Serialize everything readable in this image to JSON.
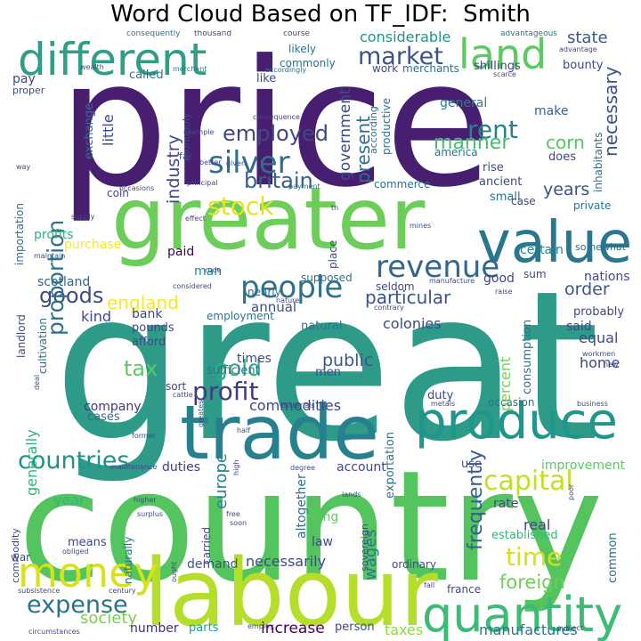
{
  "title": "Word Cloud Based on TF_IDF:  Smith",
  "words": {
    "price": {
      "text": "price",
      "color": "#481f70"
    },
    "great": {
      "text": "great",
      "color": "#2d9b87"
    },
    "country": {
      "text": "country",
      "color": "#54c45f"
    },
    "greater": {
      "text": "greater",
      "color": "#6ccd59"
    },
    "labour": {
      "text": "labour",
      "color": "#b5de2b"
    },
    "trade": {
      "text": "trade",
      "color": "#27808e"
    },
    "different": {
      "text": "different",
      "color": "#2c9f86"
    },
    "produce": {
      "text": "produce",
      "color": "#1f968b"
    },
    "quantity": {
      "text": "quantity",
      "color": "#3cbb75"
    },
    "value": {
      "text": "value",
      "color": "#2a768e"
    },
    "land": {
      "text": "land",
      "color": "#5ec962"
    },
    "money": {
      "text": "money",
      "color": "#d8e219"
    },
    "people": {
      "text": "people",
      "color": "#2d708e"
    },
    "revenue": {
      "text": "revenue",
      "color": "#31668e"
    },
    "silver": {
      "text": "silver",
      "color": "#2e6e8e"
    },
    "profit": {
      "text": "profit",
      "color": "#443983"
    },
    "capital": {
      "text": "capital",
      "color": "#c2df23"
    },
    "countries": {
      "text": "countries",
      "color": "#21918c"
    },
    "expense": {
      "text": "expense",
      "color": "#2c728e"
    },
    "market": {
      "text": "market",
      "color": "#3b528b"
    },
    "rent": {
      "text": "rent",
      "color": "#26818e"
    },
    "stock": {
      "text": "stock",
      "color": "#e5e419"
    },
    "gold": {
      "text": "gold",
      "color": "#29af7f"
    },
    "time": {
      "text": "time",
      "color": "#d5e21a"
    },
    "goods": {
      "text": "goods",
      "color": "#3e4a89"
    },
    "employed": {
      "text": "employed",
      "color": "#3f4889"
    },
    "britain": {
      "text": "britain",
      "color": "#33628d"
    },
    "tax": {
      "text": "tax",
      "color": "#5cc863"
    },
    "proportion": {
      "text": "proportion",
      "color": "#2c728e"
    },
    "manner": {
      "text": "manner",
      "color": "#44bf70"
    },
    "corn": {
      "text": "corn",
      "color": "#56c667"
    },
    "england": {
      "text": "england",
      "color": "#fde725"
    },
    "foreign": {
      "text": "foreign",
      "color": "#6ece58"
    },
    "society": {
      "text": "society",
      "color": "#7ad151"
    },
    "particular": {
      "text": "particular",
      "color": "#3b528b"
    },
    "frequently": {
      "text": "frequently",
      "color": "#355f8d"
    },
    "years": {
      "text": "years",
      "color": "#3a538b"
    },
    "order": {
      "text": "order",
      "color": "#3a548c"
    },
    "public": {
      "text": "public",
      "color": "#39568c"
    },
    "necessary": {
      "text": "necessary",
      "color": "#3b518b"
    },
    "industry": {
      "text": "industry",
      "color": "#3e4989"
    },
    "present": {
      "text": "present",
      "color": "#2e6f8e"
    },
    "government": {
      "text": "government",
      "color": "#3e4c8a"
    },
    "wages": {
      "text": "wages",
      "color": "#2a788e"
    },
    "europe": {
      "text": "europe",
      "color": "#26828e"
    },
    "state": {
      "text": "state",
      "color": "#38588c"
    },
    "considerable": {
      "text": "considerable",
      "color": "#20928c"
    },
    "commodities": {
      "text": "commodities",
      "color": "#3f4788"
    },
    "colonies": {
      "text": "colonies",
      "color": "#3f4889"
    },
    "generally": {
      "text": "generally",
      "color": "#2fb47c"
    },
    "percent": {
      "text": "percent",
      "color": "#77d153"
    },
    "real": {
      "text": "real",
      "color": "#3f4788"
    },
    "necessarily": {
      "text": "necessarily",
      "color": "#3e4989"
    },
    "manufactures": {
      "text": "manufactures",
      "color": "#2c738e"
    },
    "increase": {
      "text": "increase",
      "color": "#440154"
    },
    "taxes": {
      "text": "taxes",
      "color": "#90d743"
    },
    "equal": {
      "text": "equal",
      "color": "#3f4788"
    },
    "home": {
      "text": "home",
      "color": "#3f4788"
    },
    "kind": {
      "text": "kind",
      "color": "#3f4788"
    },
    "gen": {
      "text": "general",
      "color": "#27808e"
    },
    "make": {
      "text": "make",
      "color": "#33638d"
    },
    "good": {
      "text": "good",
      "color": "#3f4889"
    },
    "certain": {
      "text": "certain",
      "color": "#25838e"
    },
    "nations": {
      "text": "nations",
      "color": "#3f4889"
    },
    "annual": {
      "text": "annual",
      "color": "#3d4e8a"
    },
    "paid": {
      "text": "paid",
      "color": "#440154"
    },
    "man": {
      "text": "man",
      "color": "#228c8d"
    },
    "scotland": {
      "text": "scotland",
      "color": "#33638d"
    },
    "profits": {
      "text": "profits",
      "color": "#2fb47c"
    },
    "purchase": {
      "text": "purchase",
      "color": "#fde725"
    },
    "year": {
      "text": "year",
      "color": "#2fb47c"
    },
    "means": {
      "text": "means",
      "color": "#3e4989"
    },
    "demand": {
      "text": "demand",
      "color": "#3b528b"
    },
    "law": {
      "text": "law",
      "color": "#3f4889"
    },
    "long": {
      "text": "long",
      "color": "#5ec962"
    },
    "rate": {
      "text": "rate",
      "color": "#3f4889"
    },
    "established": {
      "text": "established",
      "color": "#35b779"
    },
    "duties": {
      "text": "duties",
      "color": "#443983"
    },
    "account": {
      "text": "account",
      "color": "#3f4889"
    },
    "use": {
      "text": "use",
      "color": "#3e4989"
    },
    "improvement": {
      "text": "improvement",
      "color": "#5ec962"
    },
    "number": {
      "text": "number",
      "color": "#482878"
    },
    "parts": {
      "text": "parts",
      "color": "#1f9e89"
    },
    "person": {
      "text": "person",
      "color": "#3e4989"
    },
    "company": {
      "text": "company",
      "color": "#443983"
    },
    "cases": {
      "text": "cases",
      "color": "#2c728e"
    },
    "bank": {
      "text": "bank",
      "color": "#3e4989"
    },
    "pounds": {
      "text": "pounds",
      "color": "#3e4989"
    },
    "afford": {
      "text": "afford",
      "color": "#3e4989"
    },
    "times": {
      "text": "times",
      "color": "#3e4989"
    },
    "sufficient": {
      "text": "sufficient",
      "color": "#2c728e"
    },
    "natural": {
      "text": "natural",
      "color": "#2c728e"
    },
    "men": {
      "text": "men",
      "color": "#3e4989"
    },
    "duty": {
      "text": "duty",
      "color": "#3e4989"
    },
    "said": {
      "text": "said",
      "color": "#3e4989"
    },
    "probably": {
      "text": "probably",
      "color": "#3e4989"
    },
    "pay": {
      "text": "pay",
      "color": "#3e4989"
    },
    "little": {
      "text": "little",
      "color": "#3e4989"
    },
    "exchange": {
      "text": "exchange",
      "color": "#2c728e"
    },
    "called": {
      "text": "called",
      "color": "#2c728e"
    },
    "like": {
      "text": "like",
      "color": "#3e4989"
    },
    "commonly": {
      "text": "commonly",
      "color": "#2c728e"
    },
    "likely": {
      "text": "likely",
      "color": "#2c728e"
    },
    "shillings": {
      "text": "shillings",
      "color": "#3e4989"
    },
    "work": {
      "text": "work",
      "color": "#3e4989"
    },
    "merchants": {
      "text": "merchants",
      "color": "#2c728e"
    },
    "bounty": {
      "text": "bounty",
      "color": "#3e4989"
    },
    "rise": {
      "text": "rise",
      "color": "#3e4989"
    },
    "does": {
      "text": "does",
      "color": "#3e4989"
    },
    "america": {
      "text": "america",
      "color": "#2c728e"
    },
    "ancient": {
      "text": "ancient",
      "color": "#3e4989"
    },
    "small": {
      "text": "small",
      "color": "#2c728e"
    },
    "case": {
      "text": "case",
      "color": "#3e4989"
    },
    "private": {
      "text": "private",
      "color": "#2c728e"
    },
    "commerce": {
      "text": "commerce",
      "color": "#2c728e"
    },
    "seldom": {
      "text": "seldom",
      "color": "#3e4989"
    },
    "sum": {
      "text": "sum",
      "color": "#3e4989"
    },
    "supposed": {
      "text": "supposed",
      "color": "#2c728e"
    },
    "nearly": {
      "text": "nearly",
      "color": "#2c728e"
    },
    "employment": {
      "text": "employment",
      "color": "#2c728e"
    },
    "occasion": {
      "text": "occasion",
      "color": "#2c728e"
    },
    "sort": {
      "text": "sort",
      "color": "#3e4989"
    },
    "coin": {
      "text": "coin",
      "color": "#3e4989"
    },
    "landlord": {
      "text": "landlord",
      "color": "#3e4989"
    },
    "cultivation": {
      "text": "cultivation",
      "color": "#2c728e"
    },
    "importation": {
      "text": "importation",
      "color": "#2c728e"
    },
    "consumption": {
      "text": "consumption",
      "color": "#2c728e"
    },
    "exportation": {
      "text": "exportation",
      "color": "#2c728e"
    },
    "altogether": {
      "text": "altogether",
      "color": "#2c728e"
    },
    "carried": {
      "text": "carried",
      "color": "#3e4989"
    },
    "naturally": {
      "text": "naturally",
      "color": "#2c728e"
    },
    "commodity": {
      "text": "commodity",
      "color": "#3e4989"
    },
    "war": {
      "text": "war",
      "color": "#3e4989"
    },
    "ordinary": {
      "text": "ordinary",
      "color": "#3e4989"
    },
    "france": {
      "text": "france",
      "color": "#3e4989"
    },
    "common": {
      "text": "common",
      "color": "#2c728e"
    },
    "sovereign": {
      "text": "sovereign",
      "color": "#3e4989"
    },
    "productive": {
      "text": "productive",
      "color": "#2c728e"
    },
    "according": {
      "text": "according",
      "color": "#2c728e"
    },
    "inhabitants": {
      "text": "inhabitants",
      "color": "#2c728e"
    },
    "monopoly": {
      "text": "monopoly",
      "color": "#3e4989"
    },
    "far": {
      "text": "far",
      "color": "#3e4989"
    },
    "somewhat": {
      "text": "somewhat",
      "color": "#2c728e"
    },
    "place": {
      "text": "place",
      "color": "#3e4989"
    },
    "proper": {
      "text": "proper",
      "color": "#3e4989"
    },
    "consequently": {
      "text": "consequently",
      "color": "#2c728e"
    },
    "thousand": {
      "text": "thousand",
      "color": "#3e4989"
    },
    "course": {
      "text": "course",
      "color": "#3e4989"
    },
    "advantageous": {
      "text": "advantageous",
      "color": "#2c728e"
    },
    "advantage": {
      "text": "advantage",
      "color": "#3e4989"
    },
    "wealth": {
      "text": "wealth",
      "color": "#3e4989"
    },
    "merchant": {
      "text": "merchant",
      "color": "#2c728e"
    },
    "scarce": {
      "text": "scarce",
      "color": "#3e4989"
    },
    "consequence": {
      "text": "consequence",
      "color": "#3e4989"
    },
    "accordingly": {
      "text": "accordingly",
      "color": "#2c728e"
    },
    "way": {
      "text": "way",
      "color": "#3e4989"
    },
    "better": {
      "text": "better",
      "color": "#3e4989"
    },
    "given": {
      "text": "given",
      "color": "#3e4989"
    },
    "example": {
      "text": "example",
      "color": "#3e4989"
    },
    "principal": {
      "text": "principal",
      "color": "#3e4989"
    },
    "payment": {
      "text": "payment",
      "color": "#2c728e"
    },
    "occasions": {
      "text": "occasions",
      "color": "#3e4989"
    },
    "effect": {
      "text": "effect",
      "color": "#3e4989"
    },
    "supply": {
      "text": "supply",
      "color": "#3e4989"
    },
    "maintain": {
      "text": "maintain",
      "color": "#3e4989"
    },
    "rude": {
      "text": "rude",
      "color": "#3e4989"
    },
    "mines": {
      "text": "mines",
      "color": "#3e4989"
    },
    "th": {
      "text": "th",
      "color": "#3e4989"
    },
    "considered": {
      "text": "considered",
      "color": "#3e4989"
    },
    "nature": {
      "text": "nature",
      "color": "#3e4989"
    },
    "manufacture": {
      "text": "manufacture",
      "color": "#3e4989"
    },
    "raise": {
      "text": "raise",
      "color": "#3e4989"
    },
    "contrary": {
      "text": "contrary",
      "color": "#3e4989"
    },
    "workmen": {
      "text": "workmen",
      "color": "#3e4989"
    },
    "new": {
      "text": "new",
      "color": "#3e4989"
    },
    "business": {
      "text": "business",
      "color": "#3e4989"
    },
    "deal": {
      "text": "deal",
      "color": "#3e4989"
    },
    "cattle": {
      "text": "cattle",
      "color": "#3e4989"
    },
    "materials": {
      "text": "materials",
      "color": "#3e4989"
    },
    "metals": {
      "text": "metals",
      "color": "#3e4989"
    },
    "greatest": {
      "text": "greatest",
      "color": "#3e4989"
    },
    "half": {
      "text": "half",
      "color": "#3e4989"
    },
    "former": {
      "text": "former",
      "color": "#3e4989"
    },
    "maintenance": {
      "text": "maintenance",
      "color": "#3e4989"
    },
    "degree": {
      "text": "degree",
      "color": "#3e4989"
    },
    "high": {
      "text": "high",
      "color": "#3e4989"
    },
    "higher": {
      "text": "higher",
      "color": "#3e4989"
    },
    "surplus": {
      "text": "surplus",
      "color": "#3e4989"
    },
    "free": {
      "text": "free",
      "color": "#3e4989"
    },
    "soon": {
      "text": "soon",
      "color": "#3e4989"
    },
    "lands": {
      "text": "lands",
      "color": "#3e4989"
    },
    "poor": {
      "text": "poor",
      "color": "#3e4989"
    },
    "obliged": {
      "text": "obliged",
      "color": "#3e4989"
    },
    "ought": {
      "text": "ought",
      "color": "#3e4989"
    },
    "subsistence": {
      "text": "subsistence",
      "color": "#3e4989"
    },
    "century": {
      "text": "century",
      "color": "#3e4989"
    },
    "circumstances": {
      "text": "circumstances",
      "color": "#3e4989"
    },
    "employ": {
      "text": "employ",
      "color": "#3e4989"
    },
    "fall": {
      "text": "fall",
      "color": "#3e4989"
    },
    "subject": {
      "text": "subject",
      "color": "#3e4989"
    }
  }
}
